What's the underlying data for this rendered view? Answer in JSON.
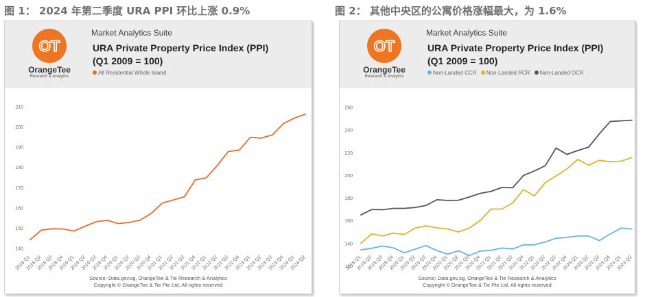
{
  "captions": [
    "图 1： 2024 年第二季度 URA PPI 环比上涨 0.9%",
    "图 2： 其他中央区的公寓价格涨幅最大，为 1.6%"
  ],
  "brand": {
    "logo_mark": "OT",
    "logo_name": "OrangeTee",
    "logo_sub": "Research & Analytics",
    "suite": "Market Analytics Suite",
    "accent": "#ee7623"
  },
  "footer": {
    "line1": "Source: Data.gov.sg, OrangeTee & Tie Research & Analytics",
    "line2": "Copyright © OrangeTee & Tie Pte Ltd. All rights reserved"
  },
  "chart_data": [
    {
      "type": "line",
      "title": "URA Private Property Price Index (PPI)",
      "subtitle": "(Q1 2009 = 100)",
      "legend_placement": "top-left",
      "grid": false,
      "categories": [
        "2018 Q1",
        "2018 Q2",
        "2018 Q3",
        "2018 Q4",
        "2019 Q1",
        "2019 Q2",
        "2019 Q3",
        "2019 Q4",
        "2020 Q1",
        "2020 Q2",
        "2020 Q3",
        "2020 Q4",
        "2021 Q1",
        "2021 Q2",
        "2021 Q3",
        "2021 Q4",
        "2022 Q1",
        "2022 Q2",
        "2022 Q3",
        "2022 Q4",
        "2023 Q1",
        "2023 Q2",
        "2023 Q3",
        "2023 Q4",
        "2024 Q1",
        "2024 Q2"
      ],
      "y_ticks": [
        140,
        150,
        160,
        170,
        180,
        190,
        200,
        210
      ],
      "ylim": [
        140,
        210
      ],
      "series": [
        {
          "name": "All Residential Whole Island",
          "color": "#e36f2c",
          "values": [
            144.3,
            149.0,
            149.7,
            149.6,
            148.6,
            151.0,
            153.2,
            153.9,
            152.3,
            152.8,
            154.0,
            157.3,
            162.4,
            163.9,
            165.5,
            173.8,
            174.9,
            181.0,
            187.9,
            188.6,
            194.9,
            194.5,
            196.1,
            201.6,
            204.4,
            206.3
          ]
        }
      ]
    },
    {
      "type": "line",
      "title": "URA Private Property Price Index (PPI)",
      "subtitle": "(Q1 2009 = 100)",
      "legend_placement": "top-left",
      "grid": false,
      "categories": [
        "2018 Q1",
        "2018 Q2",
        "2018 Q3",
        "2018 Q4",
        "2019 Q1",
        "2019 Q2",
        "2019 Q3",
        "2019 Q4",
        "2020 Q1",
        "2020 Q2",
        "2020 Q3",
        "2020 Q4",
        "2021 Q1",
        "2021 Q2",
        "2021 Q3",
        "2021 Q4",
        "2022 Q1",
        "2022 Q2",
        "2022 Q3",
        "2022 Q4",
        "2023 Q1",
        "2023 Q2",
        "2023 Q3",
        "2023 Q4",
        "2024 Q1",
        "2024 Q2"
      ],
      "y_ticks": [
        120,
        140,
        160,
        180,
        200,
        220,
        240,
        260
      ],
      "ylim": [
        120,
        260
      ],
      "series": [
        {
          "name": "Non-Landed CCR",
          "color": "#6ab2e3",
          "values": [
            134.4,
            135.8,
            137.8,
            136.2,
            131.8,
            135.0,
            138.2,
            133.8,
            130.6,
            133.6,
            129.4,
            133.4,
            134.0,
            136.0,
            135.2,
            138.8,
            138.8,
            141.4,
            144.6,
            145.4,
            146.6,
            146.6,
            142.6,
            148.4,
            153.6,
            152.8
          ]
        },
        {
          "name": "Non-Landed RCR",
          "color": "#e0b12a",
          "values": [
            140.2,
            148.6,
            146.6,
            149.2,
            148.0,
            153.6,
            155.6,
            153.8,
            152.8,
            150.2,
            153.6,
            160.2,
            170.4,
            170.4,
            175.8,
            187.6,
            182.0,
            193.6,
            199.6,
            205.8,
            214.2,
            209.0,
            213.4,
            212.0,
            212.6,
            215.8
          ]
        },
        {
          "name": "Non-Landed OCR",
          "color": "#555555",
          "values": [
            165.2,
            170.0,
            169.8,
            171.0,
            171.0,
            171.8,
            173.6,
            178.6,
            178.0,
            178.2,
            181.0,
            184.2,
            186.0,
            189.4,
            189.2,
            200.0,
            204.0,
            208.6,
            224.2,
            218.6,
            222.0,
            225.0,
            236.8,
            247.6,
            248.2,
            248.8
          ]
        }
      ]
    }
  ]
}
